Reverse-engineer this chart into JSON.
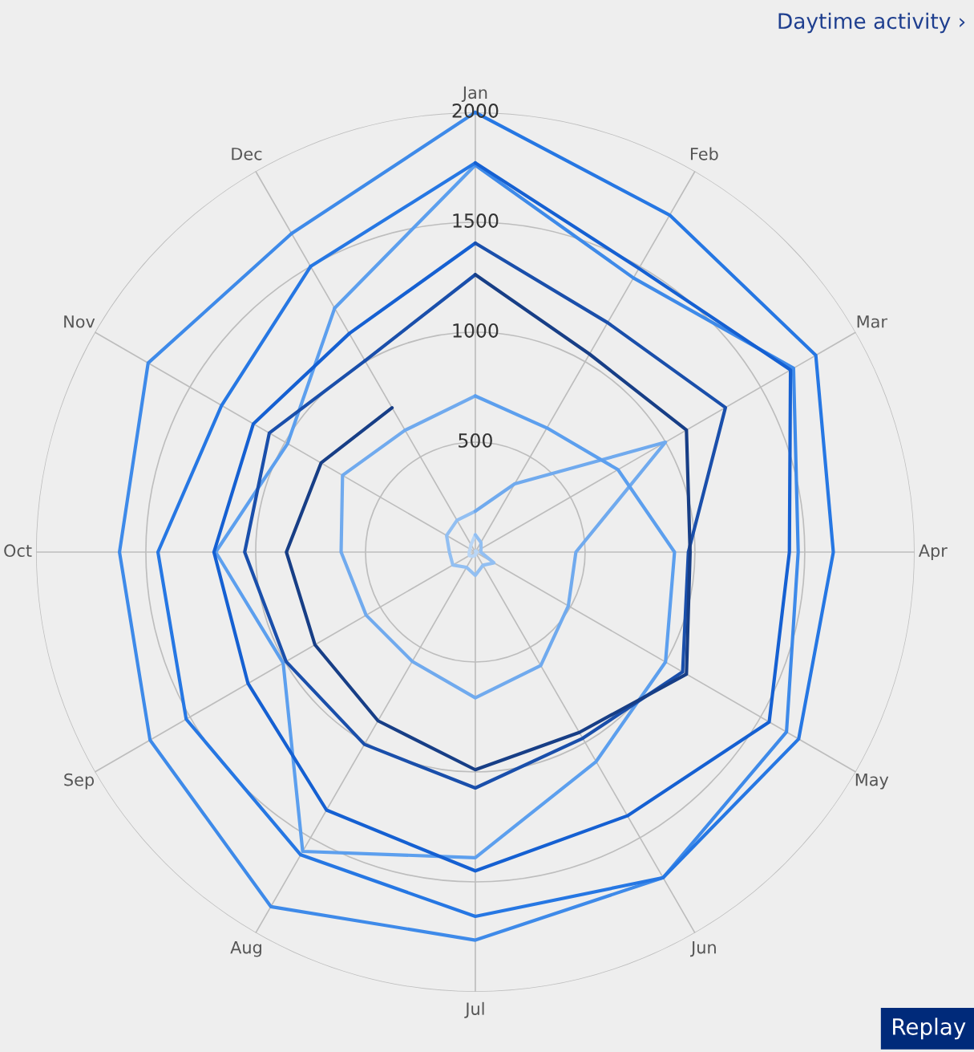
{
  "chart_data": {
    "type": "radar",
    "title": "Daytime activity ›",
    "categories": [
      "Jan",
      "Feb",
      "Mar",
      "Apr",
      "May",
      "Jun",
      "Jul",
      "Aug",
      "Sep",
      "Oct",
      "Nov",
      "Dec"
    ],
    "series": [
      {
        "color": "#b9d6f6",
        "values": [
          5,
          7,
          5,
          8,
          7,
          4,
          14,
          22,
          32,
          28,
          28,
          39
        ]
      },
      {
        "color": "#92bff2",
        "values": [
          79,
          51,
          30,
          25,
          98,
          69,
          106,
          80,
          118,
          118,
          151,
          167
        ]
      },
      {
        "color": "#70aaee",
        "values": [
          186,
          358,
          1000,
          458,
          489,
          596,
          663,
          574,
          574,
          611,
          698,
          640
        ]
      },
      {
        "color": "#5c9fee",
        "values": [
          710,
          652,
          750,
          907,
          1000,
          1100,
          1390,
          1572,
          1010,
          1182,
          987,
          1281
        ]
      },
      {
        "color": "#3e8ae9",
        "values": [
          1760,
          1440,
          1673,
          1470,
          1636,
          1710,
          1765,
          1862,
          1710,
          1620,
          1720,
          1673
        ]
      },
      {
        "color": "#2677e3",
        "values": [
          2000,
          1770,
          1790,
          1630,
          1700,
          1710,
          1657,
          1590,
          1520,
          1445,
          1334,
          1500
        ]
      },
      {
        "color": "#1560d2",
        "values": [
          1770,
          1490,
          1657,
          1430,
          1545,
          1385,
          1450,
          1355,
          1195,
          1190,
          1167,
          1148
        ]
      },
      {
        "color": "#1a4fab",
        "values": [
          1405,
          1205,
          1315,
          970,
          1090,
          978,
          1073,
          1010,
          995,
          1050,
          1083,
          1005
        ]
      },
      {
        "color": "#173e86",
        "values": [
          1262,
          1040,
          1110,
          978,
          1110,
          947,
          990,
          886,
          843,
          860,
          811,
          758
        ]
      }
    ],
    "ylim": [
      0,
      2000
    ],
    "yticks": [
      500,
      1000,
      1500,
      2000
    ],
    "grid": true,
    "annotations": [
      "Replay"
    ]
  }
}
